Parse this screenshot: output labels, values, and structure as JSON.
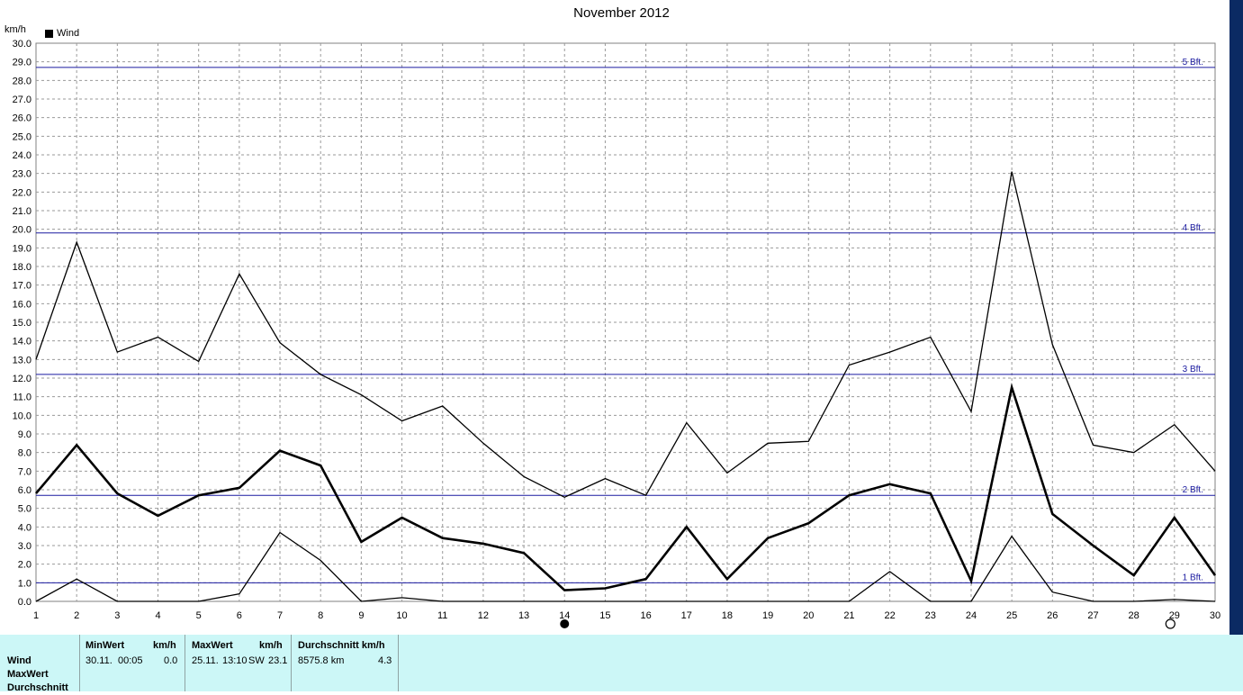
{
  "header": {
    "title": "November 2012",
    "unit": "km/h",
    "legend_label": "Wind"
  },
  "chart_data": {
    "type": "line",
    "title": "November 2012",
    "ylabel": "km/h",
    "xlim": [
      1,
      30
    ],
    "ylim": [
      0,
      30
    ],
    "grid": true,
    "legend": "top-left",
    "x": [
      1,
      2,
      3,
      4,
      5,
      6,
      7,
      8,
      9,
      10,
      11,
      12,
      13,
      14,
      15,
      16,
      17,
      18,
      19,
      20,
      21,
      22,
      23,
      24,
      25,
      26,
      27,
      28,
      29,
      30
    ],
    "x_tick_labels": [
      "1",
      "2",
      "3",
      "4",
      "5",
      "6",
      "7",
      "8",
      "9",
      "10",
      "11",
      "12",
      "13",
      "14",
      "15",
      "16",
      "17",
      "18",
      "19",
      "20",
      "21",
      "22",
      "23",
      "24",
      "25",
      "26",
      "27",
      "28",
      "29",
      "30"
    ],
    "y_tick_labels": [
      "0.0",
      "1.0",
      "2.0",
      "3.0",
      "4.0",
      "5.0",
      "6.0",
      "7.0",
      "8.0",
      "9.0",
      "10.0",
      "11.0",
      "12.0",
      "13.0",
      "14.0",
      "15.0",
      "16.0",
      "17.0",
      "18.0",
      "19.0",
      "20.0",
      "21.0",
      "22.0",
      "23.0",
      "24.0",
      "25.0",
      "26.0",
      "27.0",
      "28.0",
      "29.0",
      "30.0"
    ],
    "series": [
      {
        "name": "Wind",
        "role": "max",
        "color": "#000000",
        "values": [
          13.0,
          19.3,
          13.4,
          14.2,
          12.9,
          17.6,
          13.9,
          12.2,
          11.1,
          9.7,
          10.5,
          8.5,
          6.7,
          5.6,
          6.6,
          5.7,
          9.6,
          6.9,
          8.5,
          8.6,
          12.7,
          13.4,
          14.2,
          10.2,
          23.1,
          13.8,
          8.4,
          8.0,
          9.5,
          7.0
        ]
      },
      {
        "role": "average",
        "color": "#000000",
        "values": [
          5.8,
          8.4,
          5.8,
          4.6,
          5.7,
          6.1,
          8.1,
          7.3,
          3.2,
          4.5,
          3.4,
          3.1,
          2.6,
          0.6,
          0.7,
          1.2,
          4.0,
          1.2,
          3.4,
          4.2,
          5.7,
          6.3,
          5.8,
          1.1,
          11.5,
          4.7,
          3.0,
          1.4,
          4.5,
          1.4
        ]
      },
      {
        "role": "min",
        "color": "#000000",
        "values": [
          0.0,
          1.2,
          0.0,
          0.0,
          0.0,
          0.4,
          3.7,
          2.2,
          0.0,
          0.2,
          0.0,
          0.0,
          0.0,
          0.0,
          0.0,
          0.0,
          0.0,
          0.0,
          0.0,
          0.0,
          0.0,
          1.6,
          0.0,
          0.0,
          3.5,
          0.5,
          0.0,
          0.0,
          0.1,
          0.0
        ]
      }
    ],
    "reference_lines": [
      {
        "label": "1 Bft.",
        "value": 1.0,
        "color": "#1a1aa0"
      },
      {
        "label": "2 Bft.",
        "value": 5.7,
        "color": "#1a1aa0"
      },
      {
        "label": "3 Bft.",
        "value": 12.2,
        "color": "#1a1aa0"
      },
      {
        "label": "4 Bft.",
        "value": 19.8,
        "color": "#1a1aa0"
      },
      {
        "label": "5 Bft.",
        "value": 28.7,
        "color": "#1a1aa0"
      }
    ],
    "moon_phases": [
      {
        "day": 14,
        "phase": "new-moon"
      },
      {
        "day": 28.9,
        "phase": "full-moon"
      }
    ]
  },
  "summary": {
    "row_labels": [
      "Wind",
      "MaxWert",
      "Durchschnitt"
    ],
    "min": {
      "header": "MinWert",
      "unit": "km/h",
      "date": "30.11.",
      "time": "00:05",
      "value": "0.0"
    },
    "max": {
      "header": "MaxWert",
      "unit": "km/h",
      "date": "25.11.",
      "time": "13:10",
      "direction": "SW",
      "value": "23.1"
    },
    "avg": {
      "header": "Durchschnitt km/h",
      "distance": "8575.8 km",
      "value": "4.3"
    }
  }
}
